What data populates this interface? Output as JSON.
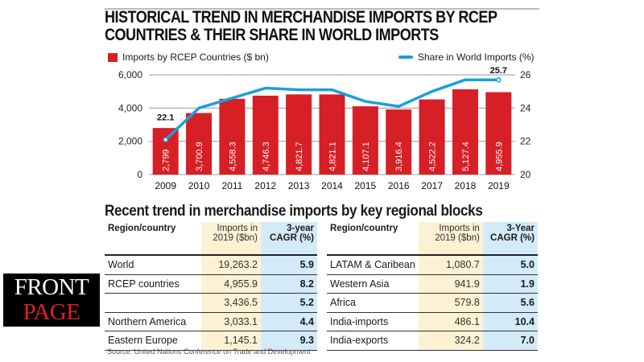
{
  "title_line1": "HISTORICAL TREND IN MERCHANDISE IMPORTS BY RCEP",
  "title_line2": "COUNTRIES & THEIR SHARE IN WORLD IMPORTS",
  "chart_data": {
    "type": "bar+line",
    "categories": [
      "2009",
      "2010",
      "2011",
      "2012",
      "2013",
      "2014",
      "2015",
      "2016",
      "2017",
      "2018",
      "2019"
    ],
    "series": [
      {
        "name": "Imports by RCEP Countries ($ bn)",
        "type": "bar",
        "axis": "left",
        "values": [
          2799,
          3700.9,
          4558.3,
          4746.3,
          4821.7,
          4821.1,
          4107.1,
          3916.4,
          4522.2,
          5127.4,
          4955.9
        ],
        "labels": [
          "2,799",
          "3,700.9",
          "4,558.3",
          "4,746.3",
          "4,821.7",
          "4,821.1",
          "4,107.1",
          "3,916.4",
          "4,522.2",
          "5,127.4",
          "4,955.9"
        ]
      },
      {
        "name": "Share in World Imports (%)",
        "type": "line",
        "axis": "right",
        "values": [
          22.1,
          24.0,
          24.6,
          25.2,
          25.1,
          25.1,
          24.4,
          24.1,
          25.0,
          25.7,
          25.7
        ],
        "annotations": [
          {
            "index": 0,
            "text": "22.1"
          },
          {
            "index": 10,
            "text": "25.7"
          }
        ]
      }
    ],
    "left_axis": {
      "ylim": [
        0,
        6000
      ],
      "ticks": [
        "0",
        "2,000",
        "4,000",
        "6,000"
      ],
      "tick_values": [
        0,
        2000,
        4000,
        6000
      ]
    },
    "right_axis": {
      "ylim": [
        20,
        26
      ],
      "ticks": [
        "20",
        "22",
        "24",
        "26"
      ],
      "tick_values": [
        20,
        22,
        24,
        26
      ]
    },
    "legend_placement": "top",
    "colors": {
      "bar": "#d71f26",
      "line": "#1aa0d8"
    }
  },
  "table": {
    "title": "Recent trend in merchandise imports by key regional blocks",
    "headers": {
      "region": "Region/country",
      "imports_1": "Imports in",
      "imports_2": "2019 ($bn)",
      "cagr_left_1": "3-year",
      "cagr_right_1": "3-Year",
      "cagr_2": "CAGR (%)"
    },
    "left_rows": [
      {
        "region": "World",
        "imports": "19,263.2",
        "cagr": "5.9"
      },
      {
        "region": "RCEP countries",
        "imports": "4,955.9",
        "cagr": "8.2"
      },
      {
        "region": "",
        "imports": "3,436.5",
        "cagr": "5.2"
      },
      {
        "region": "Northern America",
        "imports": "3,033.1",
        "cagr": "4.4"
      },
      {
        "region": "Eastern Europe",
        "imports": "1,145.1",
        "cagr": "9.3"
      }
    ],
    "right_rows": [
      {
        "region": "LATAM & Caribean",
        "imports": "1,080.7",
        "cagr": "5.0"
      },
      {
        "region": "Western Asia",
        "imports": "941.9",
        "cagr": "1.9"
      },
      {
        "region": "Africa",
        "imports": "579.8",
        "cagr": "5.6"
      },
      {
        "region": "India-imports",
        "imports": "486.1",
        "cagr": "10.4"
      },
      {
        "region": "India-exports",
        "imports": "324.2",
        "cagr": "7.0"
      }
    ]
  },
  "source": "Source: United Nations Conference on Trade and Development",
  "logo": {
    "part1": "FRONT",
    "part2": "PAGE"
  }
}
